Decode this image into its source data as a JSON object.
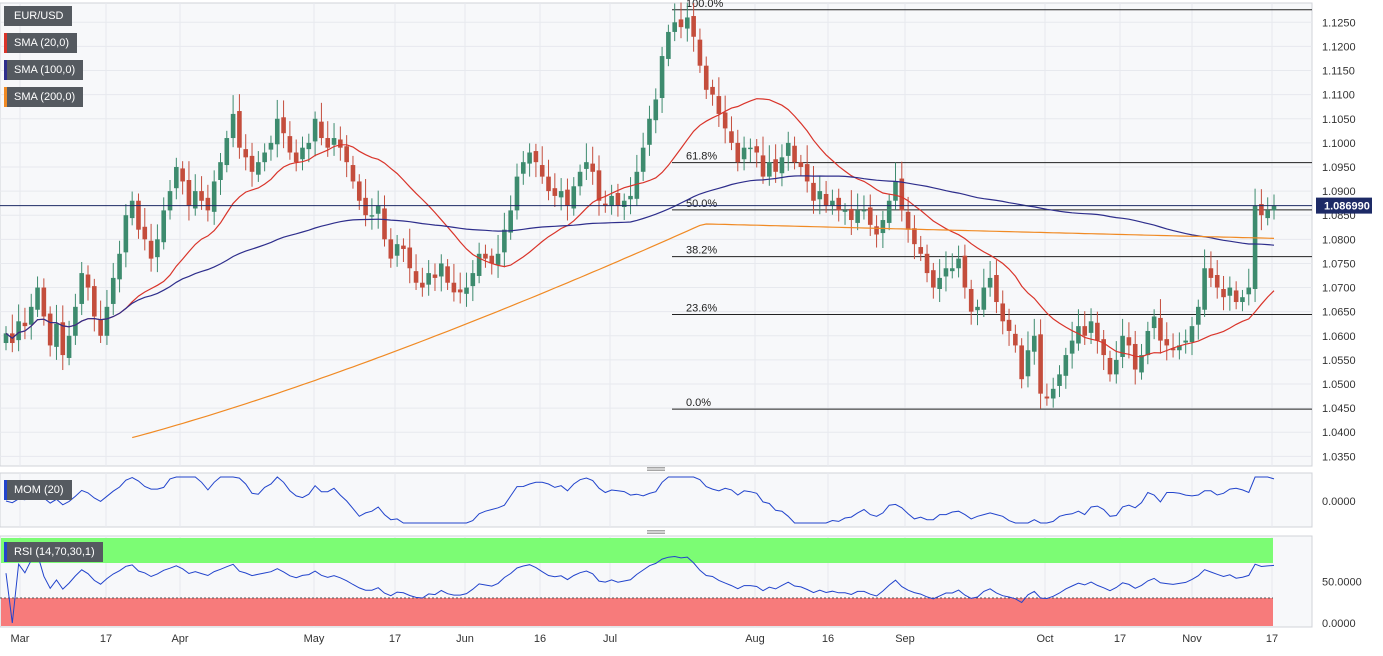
{
  "chart_data": {
    "type": "candlestick",
    "symbol": "EUR/USD",
    "last_price_label": "1.086990",
    "last_price": 1.08699,
    "colors": {
      "up": "#3d8b6e",
      "down": "#c44d3c",
      "sma20": "#d9342a",
      "sma100": "#2e2e8c",
      "sma200": "#f08a24",
      "mom": "#2244cc",
      "rsi": "#2244cc",
      "rsi_overbought_zone": "#7cfc74",
      "rsi_oversold_zone": "#f77b7b",
      "price_label_bg": "#1d2a66"
    },
    "price_axis": {
      "ylim": [
        1.033,
        1.129
      ],
      "ticks": [
        "1.1250",
        "1.1200",
        "1.1150",
        "1.1100",
        "1.1050",
        "1.1000",
        "1.0950",
        "1.0900",
        "1.0850",
        "1.0800",
        "1.0750",
        "1.0700",
        "1.0650",
        "1.0600",
        "1.0550",
        "1.0500",
        "1.0450",
        "1.0400",
        "1.0350"
      ]
    },
    "x_axis_labels": [
      "Mar",
      "17",
      "Apr",
      "May",
      "17",
      "Jun",
      "16",
      "Jul",
      "Aug",
      "16",
      "Sep",
      "Oct",
      "17",
      "Nov",
      "17"
    ],
    "fibonacci": [
      {
        "label": "100.0%",
        "value": 1.1276
      },
      {
        "label": "61.8%",
        "value": 1.0959
      },
      {
        "label": "50.0%",
        "value": 1.0861
      },
      {
        "label": "38.2%",
        "value": 1.0764
      },
      {
        "label": "23.6%",
        "value": 1.0644
      },
      {
        "label": "0.0%",
        "value": 1.0448
      }
    ],
    "indicators": {
      "price_legends": [
        "EUR/USD",
        "SMA (20,0)",
        "SMA (100,0)",
        "SMA (200,0)"
      ],
      "mom": {
        "label": "MOM (20)",
        "ticks": [
          "0.0000"
        ]
      },
      "rsi": {
        "label": "RSI (14,70,30,1)",
        "ticks": [
          "50.0000",
          "0.0000"
        ]
      }
    },
    "closes": [
      1.0605,
      1.0585,
      1.063,
      1.062,
      1.066,
      1.07,
      1.064,
      1.058,
      1.0625,
      1.056,
      1.06,
      1.066,
      1.073,
      1.07,
      1.064,
      1.06,
      1.066,
      1.072,
      1.077,
      1.085,
      1.088,
      1.082,
      1.08,
      1.076,
      1.08,
      1.086,
      1.09,
      1.095,
      1.092,
      1.087,
      1.09,
      1.088,
      1.086,
      1.092,
      1.096,
      1.101,
      1.106,
      1.099,
      1.097,
      1.094,
      1.096,
      1.098,
      1.1,
      1.105,
      1.102,
      1.098,
      1.096,
      1.099,
      1.1,
      1.105,
      1.101,
      1.099,
      1.101,
      1.099,
      1.096,
      1.092,
      1.088,
      1.085,
      1.085,
      1.087,
      1.08,
      1.076,
      1.079,
      1.078,
      1.074,
      1.071,
      1.07,
      1.073,
      1.072,
      1.075,
      1.071,
      1.069,
      1.069,
      1.07,
      1.073,
      1.077,
      1.076,
      1.075,
      1.077,
      1.082,
      1.086,
      1.093,
      1.096,
      1.098,
      1.096,
      1.093,
      1.09,
      1.089,
      1.09,
      1.087,
      1.091,
      1.094,
      1.096,
      1.094,
      1.088,
      1.087,
      1.089,
      1.087,
      1.088,
      1.089,
      1.094,
      1.099,
      1.105,
      1.109,
      1.118,
      1.123,
      1.125,
      1.124,
      1.126,
      1.122,
      1.116,
      1.111,
      1.11,
      1.106,
      1.103,
      1.1,
      1.096,
      1.099,
      1.099,
      1.098,
      1.093,
      1.096,
      1.094,
      1.097,
      1.1,
      1.096,
      1.095,
      1.092,
      1.088,
      1.09,
      1.087,
      1.088,
      1.086,
      1.086,
      1.084,
      1.086,
      1.086,
      1.083,
      1.081,
      1.084,
      1.088,
      1.092,
      1.086,
      1.082,
      1.079,
      1.077,
      1.073,
      1.07,
      1.072,
      1.074,
      1.074,
      1.076,
      1.07,
      1.065,
      1.066,
      1.07,
      1.072,
      1.067,
      1.063,
      1.061,
      1.058,
      1.051,
      1.057,
      1.06,
      1.048,
      1.047,
      1.049,
      1.052,
      1.056,
      1.059,
      1.062,
      1.06,
      1.063,
      1.059,
      1.056,
      1.052,
      1.055,
      1.06,
      1.058,
      1.053,
      1.056,
      1.061,
      1.064,
      1.059,
      1.058,
      1.057,
      1.058,
      1.059,
      1.062,
      1.066,
      1.074,
      1.072,
      1.07,
      1.068,
      1.07,
      1.067,
      1.068,
      1.07,
      1.087,
      1.085,
      1.086,
      1.087
    ]
  }
}
